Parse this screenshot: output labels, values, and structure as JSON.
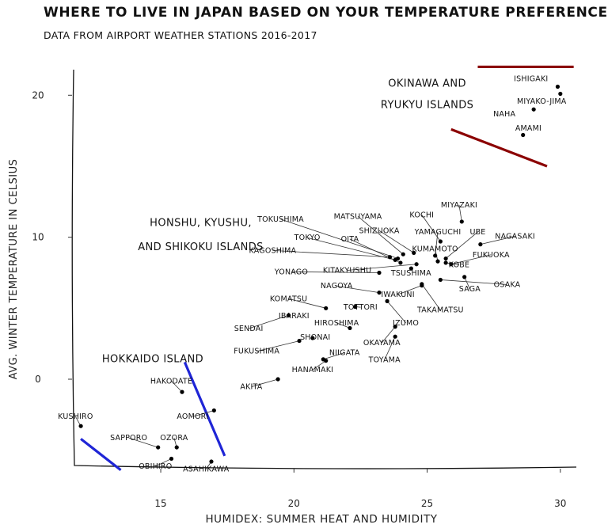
{
  "chart_data": {
    "type": "scatter",
    "title": "WHERE TO LIVE IN JAPAN BASED ON YOUR TEMPERATURE PREFERENCES",
    "subtitle": "DATA FROM AIRPORT WEATHER STATIONS 2016-2017",
    "xlabel": "HUMIDEX: SUMMER HEAT AND HUMIDITY",
    "ylabel": "AVG. WINTER TEMPERATURE IN CELSIUS",
    "xlim": [
      11.7,
      30.6
    ],
    "ylim": [
      -6.3,
      21.8
    ],
    "xticks": [
      15,
      20,
      25,
      30
    ],
    "yticks": [
      0,
      10,
      20
    ],
    "grid": false,
    "points": [
      {
        "label": "ISHIGAKI",
        "x": 29.9,
        "y": 20.6,
        "lx": 28.9,
        "ly": 21.0,
        "leader": false
      },
      {
        "label": "MIYAKO-JIMA",
        "x": 30.0,
        "y": 20.1,
        "lx": 29.3,
        "ly": 19.4,
        "leader": false
      },
      {
        "label": "NAHA",
        "x": 29.0,
        "y": 19.0,
        "lx": 27.9,
        "ly": 18.5,
        "leader": false
      },
      {
        "label": "AMAMI",
        "x": 28.6,
        "y": 17.2,
        "lx": 28.8,
        "ly": 17.5,
        "leader": false
      },
      {
        "label": "MIYAZAKI",
        "x": 26.3,
        "y": 11.1,
        "lx": 26.2,
        "ly": 12.1,
        "leader": true
      },
      {
        "label": "KOCHI",
        "x": 25.5,
        "y": 9.7,
        "lx": 24.8,
        "ly": 11.4,
        "leader": true
      },
      {
        "label": "MATSUYAMA",
        "x": 24.1,
        "y": 8.8,
        "lx": 22.4,
        "ly": 11.3,
        "leader": true
      },
      {
        "label": "TOKUSHIMA",
        "x": 23.9,
        "y": 8.5,
        "lx": 19.5,
        "ly": 11.1,
        "leader": true
      },
      {
        "label": "SHIZUOKA",
        "x": 24.5,
        "y": 8.9,
        "lx": 23.2,
        "ly": 10.3,
        "leader": true
      },
      {
        "label": "YAMAGUCHI",
        "x": 25.3,
        "y": 8.7,
        "lx": 25.4,
        "ly": 10.2,
        "leader": true
      },
      {
        "label": "UBE",
        "x": 25.7,
        "y": 8.5,
        "lx": 26.9,
        "ly": 10.2,
        "leader": true
      },
      {
        "label": "NAGASAKI",
        "x": 27.0,
        "y": 9.5,
        "lx": 28.3,
        "ly": 9.9,
        "leader": true
      },
      {
        "label": "TOKYO",
        "x": 23.8,
        "y": 8.4,
        "lx": 20.5,
        "ly": 9.8,
        "leader": true
      },
      {
        "label": "OITA",
        "x": 24.0,
        "y": 8.2,
        "lx": 22.1,
        "ly": 9.7,
        "leader": true
      },
      {
        "label": "KUMAMOTO",
        "x": 25.4,
        "y": 8.3,
        "lx": 25.3,
        "ly": 9.0,
        "leader": true
      },
      {
        "label": "KAGOSHIMA",
        "x": 23.6,
        "y": 8.6,
        "lx": 19.2,
        "ly": 8.9,
        "leader": true
      },
      {
        "label": "FUKUOKA",
        "x": 25.9,
        "y": 8.1,
        "lx": 27.4,
        "ly": 8.6,
        "leader": true
      },
      {
        "label": "KOBE",
        "x": 25.7,
        "y": 8.2,
        "lx": 26.2,
        "ly": 7.9,
        "leader": true
      },
      {
        "label": "KITAKYUSHU",
        "x": 24.6,
        "y": 8.1,
        "lx": 22.0,
        "ly": 7.5,
        "leader": true
      },
      {
        "label": "TSUSHIMA",
        "x": 24.4,
        "y": 7.8,
        "lx": 24.4,
        "ly": 7.3,
        "leader": false
      },
      {
        "label": "YONAGO",
        "x": 23.2,
        "y": 7.5,
        "lx": 19.9,
        "ly": 7.4,
        "leader": true
      },
      {
        "label": "SAGA",
        "x": 26.4,
        "y": 7.2,
        "lx": 26.6,
        "ly": 6.2,
        "leader": true
      },
      {
        "label": "OSAKA",
        "x": 25.5,
        "y": 7.0,
        "lx": 28.0,
        "ly": 6.5,
        "leader": true
      },
      {
        "label": "NAGOYA",
        "x": 23.2,
        "y": 6.1,
        "lx": 21.6,
        "ly": 6.4,
        "leader": true
      },
      {
        "label": "IWAKUNI",
        "x": 24.8,
        "y": 6.6,
        "lx": 23.9,
        "ly": 5.8,
        "leader": true
      },
      {
        "label": "TAKAMATSU",
        "x": 24.8,
        "y": 6.7,
        "lx": 25.5,
        "ly": 4.7,
        "leader": true
      },
      {
        "label": "KOMATSU",
        "x": 21.2,
        "y": 5.0,
        "lx": 19.8,
        "ly": 5.5,
        "leader": true
      },
      {
        "label": "TOTTORI",
        "x": 22.3,
        "y": 5.1,
        "lx": 22.5,
        "ly": 4.9,
        "leader": true
      },
      {
        "label": "IBARAKI",
        "x": 19.8,
        "y": 4.5,
        "lx": 20.0,
        "ly": 4.3,
        "leader": false
      },
      {
        "label": "SENDAI",
        "x": 19.8,
        "y": 4.5,
        "lx": 18.3,
        "ly": 3.4,
        "leader": true
      },
      {
        "label": "HIROSHIMA",
        "x": 22.1,
        "y": 3.6,
        "lx": 21.6,
        "ly": 3.8,
        "leader": true
      },
      {
        "label": "IZUMO",
        "x": 23.5,
        "y": 5.5,
        "lx": 24.2,
        "ly": 3.8,
        "leader": true
      },
      {
        "label": "SHONAI",
        "x": 20.7,
        "y": 2.9,
        "lx": 20.8,
        "ly": 2.8,
        "leader": false
      },
      {
        "label": "OKAYAMA",
        "x": 23.8,
        "y": 3.7,
        "lx": 23.3,
        "ly": 2.4,
        "leader": true
      },
      {
        "label": "FUKUSHIMA",
        "x": 20.2,
        "y": 2.7,
        "lx": 18.6,
        "ly": 1.8,
        "leader": true
      },
      {
        "label": "NIIGATA",
        "x": 21.1,
        "y": 1.4,
        "lx": 21.9,
        "ly": 1.7,
        "leader": true
      },
      {
        "label": "TOYAMA",
        "x": 23.8,
        "y": 3.0,
        "lx": 23.4,
        "ly": 1.2,
        "leader": true
      },
      {
        "label": "HANAMAKI",
        "x": 21.2,
        "y": 1.3,
        "lx": 20.7,
        "ly": 0.5,
        "leader": true
      },
      {
        "label": "AKITA",
        "x": 19.4,
        "y": 0.0,
        "lx": 18.4,
        "ly": -0.7,
        "leader": true
      },
      {
        "label": "HAKODATE",
        "x": 15.8,
        "y": -0.9,
        "lx": 15.4,
        "ly": -0.3,
        "leader": true
      },
      {
        "label": "AOMORI",
        "x": 17.0,
        "y": -2.2,
        "lx": 16.2,
        "ly": -2.8,
        "leader": true
      },
      {
        "label": "KUSHIRO",
        "x": 12.0,
        "y": -3.3,
        "lx": 11.8,
        "ly": -2.8,
        "leader": true
      },
      {
        "label": "SAPPORO",
        "x": 14.9,
        "y": -4.8,
        "lx": 13.8,
        "ly": -4.3,
        "leader": true
      },
      {
        "label": "OZORA",
        "x": 15.6,
        "y": -4.8,
        "lx": 15.5,
        "ly": -4.3,
        "leader": true
      },
      {
        "label": "OBIHIRO",
        "x": 15.4,
        "y": -5.6,
        "lx": 14.8,
        "ly": -6.3,
        "leader": true
      },
      {
        "label": "ASAHIKAWA",
        "x": 16.9,
        "y": -5.8,
        "lx": 16.7,
        "ly": -6.5,
        "leader": true
      }
    ],
    "region_labels": [
      {
        "text": "OKINAWA AND",
        "x": 25.0,
        "y": 20.6
      },
      {
        "text": "RYUKYU ISLANDS",
        "x": 25.0,
        "y": 19.1
      },
      {
        "text": "HONSHU, KYUSHU,",
        "x": 16.5,
        "y": 10.8
      },
      {
        "text": "AND SHIKOKU ISLANDS",
        "x": 16.5,
        "y": 9.1
      },
      {
        "text": "HOKKAIDO ISLAND",
        "x": 14.7,
        "y": 1.2
      }
    ],
    "trend_lines": [
      {
        "color": "#8b0000",
        "x1": 26.9,
        "y1": 22.0,
        "x2": 30.5,
        "y2": 22.0
      },
      {
        "color": "#8b0000",
        "x1": 25.9,
        "y1": 17.6,
        "x2": 29.5,
        "y2": 15.0
      },
      {
        "color": "#1f25d6",
        "x1": 15.9,
        "y1": 1.2,
        "x2": 17.4,
        "y2": -5.4
      },
      {
        "color": "#1f25d6",
        "x1": 12.0,
        "y1": -4.2,
        "x2": 13.5,
        "y2": -6.4
      }
    ]
  }
}
